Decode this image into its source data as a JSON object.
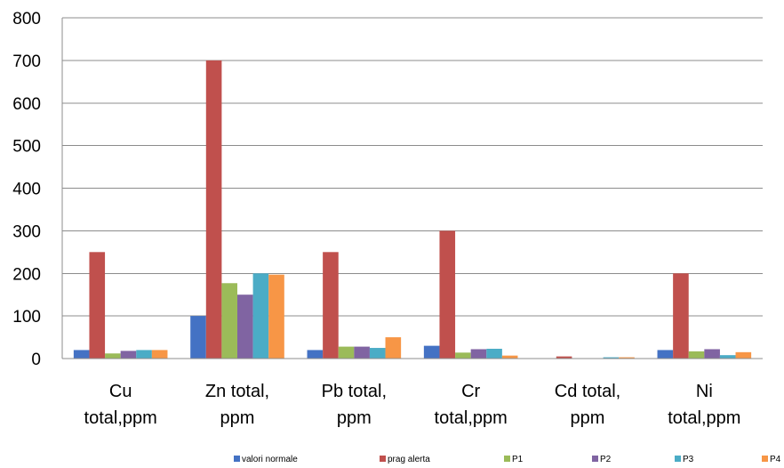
{
  "chart_data": {
    "type": "bar",
    "title": "",
    "xlabel": "",
    "ylabel": "",
    "ylim": [
      0,
      800
    ],
    "yticks": [
      0,
      100,
      200,
      300,
      400,
      500,
      600,
      700,
      800
    ],
    "grid": "horizontal",
    "legend_position": "bottom",
    "categories": [
      [
        "Cu",
        "total,ppm"
      ],
      [
        "Zn total,",
        "ppm"
      ],
      [
        "Pb total,",
        "ppm"
      ],
      [
        "Cr",
        "total,ppm"
      ],
      [
        "Cd total,",
        "ppm"
      ],
      [
        "Ni",
        "total,ppm"
      ]
    ],
    "series": [
      {
        "name": "valori normale",
        "color": "#4472C4",
        "values": [
          20,
          100,
          20,
          30,
          1,
          20
        ]
      },
      {
        "name": "prag alerta",
        "color": "#C0504D",
        "values": [
          250,
          700,
          250,
          300,
          5,
          200
        ]
      },
      {
        "name": "P1",
        "color": "#9BBB59",
        "values": [
          12,
          177,
          28,
          14,
          0.5,
          17
        ]
      },
      {
        "name": "P2",
        "color": "#8064A2",
        "values": [
          18,
          150,
          28,
          22,
          0.5,
          22
        ]
      },
      {
        "name": "P3",
        "color": "#4BACC6",
        "values": [
          20,
          200,
          25,
          23,
          3,
          8
        ]
      },
      {
        "name": "P4",
        "color": "#F79646",
        "values": [
          20,
          197,
          50,
          7,
          3,
          15
        ]
      }
    ]
  }
}
